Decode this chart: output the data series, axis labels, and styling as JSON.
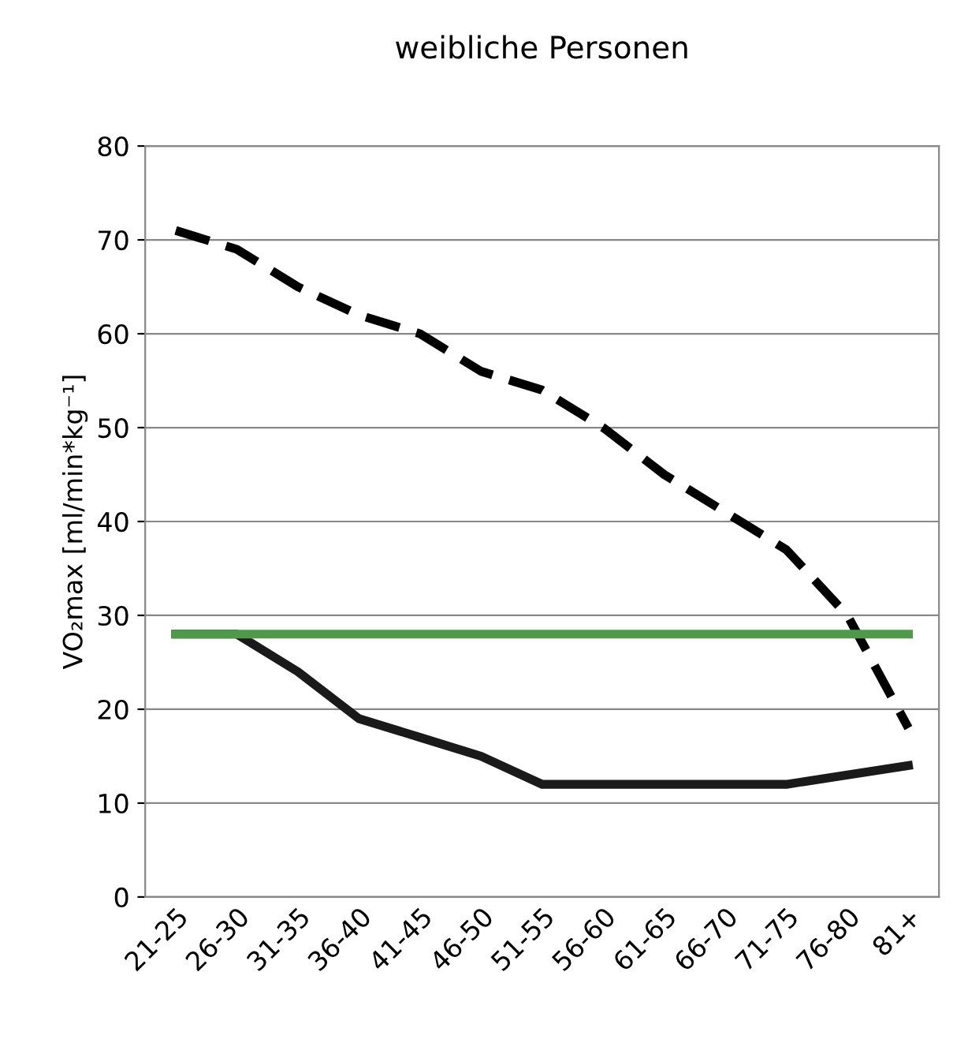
{
  "chart_data": {
    "type": "line",
    "title": "weibliche Personen",
    "ylabel": "VO₂max [ml/min*kg⁻¹]",
    "categories": [
      "21-25",
      "26-30",
      "31-35",
      "36-40",
      "41-45",
      "46-50",
      "51-55",
      "56-60",
      "61-65",
      "66-70",
      "71-75",
      "76-80",
      "81+"
    ],
    "series": [
      {
        "color": "#000000",
        "line_style": "dashed",
        "values": [
          71,
          69,
          65,
          62,
          60,
          56,
          54,
          50,
          45,
          41,
          37,
          30,
          18
        ]
      },
      {
        "color": "#1a1a1a",
        "line_style": "solid",
        "values": [
          28,
          28,
          24,
          19,
          17,
          15,
          12,
          12,
          12,
          12,
          12,
          13,
          14
        ]
      },
      {
        "color": "#4f9a4a",
        "line_style": "solid",
        "values": [
          28,
          28,
          28,
          28,
          28,
          28,
          28,
          28,
          28,
          28,
          28,
          28,
          28
        ]
      }
    ],
    "ylim": [
      0,
      80
    ],
    "yticks": [
      0,
      10,
      20,
      30,
      40,
      50,
      60,
      70,
      80
    ],
    "grid": "y",
    "legend": false,
    "marker": "none"
  }
}
